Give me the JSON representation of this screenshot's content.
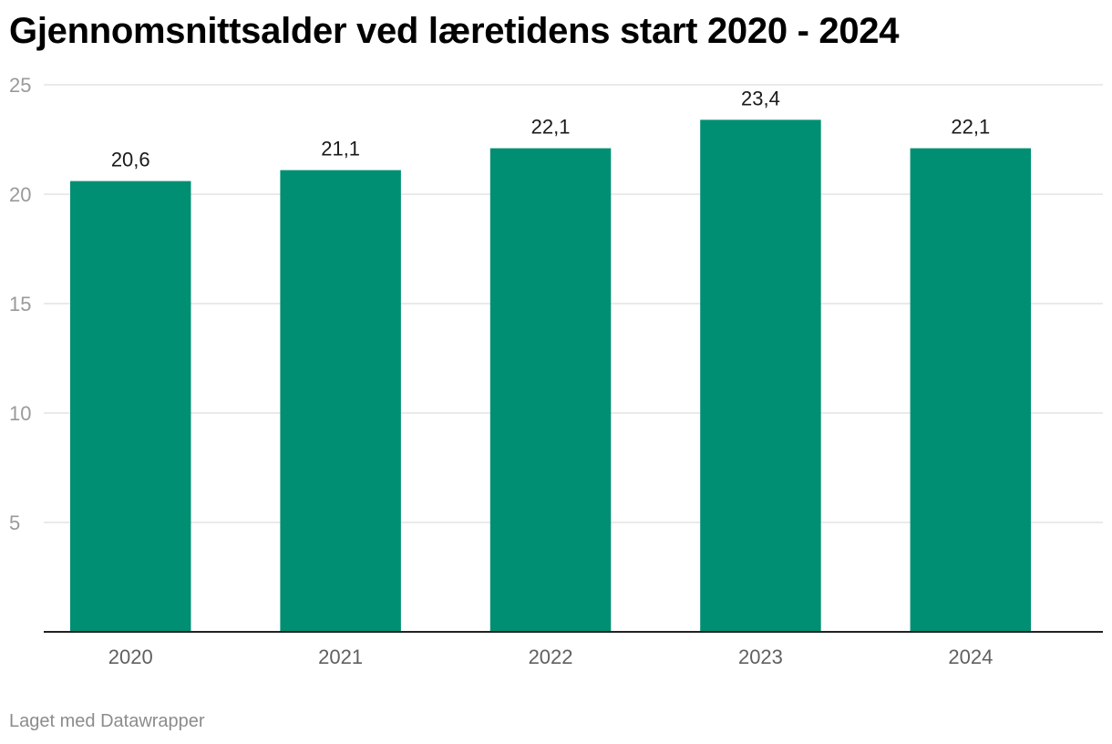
{
  "page": {
    "title": "Gjennomsnittsalder ved læretidens start 2020 - 2024",
    "footer": "Laget med Datawrapper"
  },
  "chart_data": {
    "type": "bar",
    "categories": [
      "2020",
      "2021",
      "2022",
      "2023",
      "2024"
    ],
    "values": [
      20.6,
      21.1,
      22.1,
      23.4,
      22.1
    ],
    "data_labels": [
      "20,6",
      "21,1",
      "22,1",
      "23,4",
      "22,1"
    ],
    "title": "Gjennomsnittsalder ved læretidens start 2020 - 2024",
    "xlabel": "",
    "ylabel": "",
    "ylim": [
      0,
      25
    ],
    "yticks": [
      5,
      10,
      15,
      20,
      25
    ],
    "grid": true,
    "legend": "none",
    "colors": {
      "bar": "#008f72",
      "grid": "#e3e3e3",
      "baseline": "#222222"
    }
  }
}
